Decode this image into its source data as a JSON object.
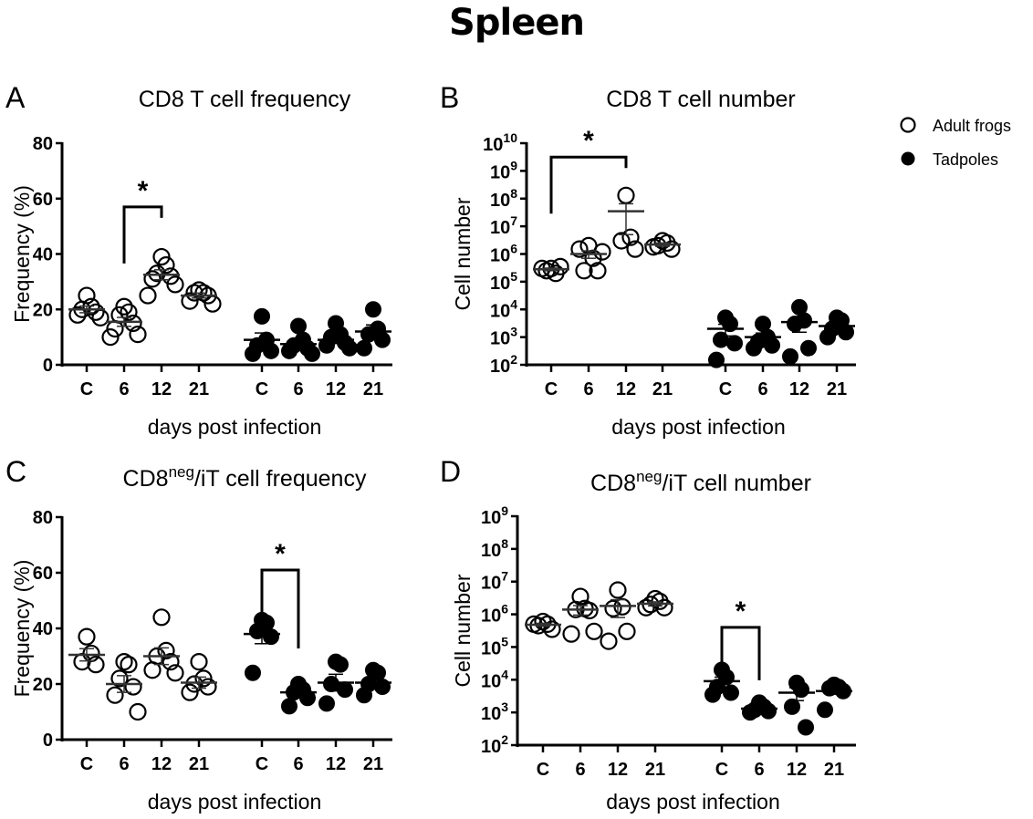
{
  "figure_title": "Spleen",
  "legend": {
    "position": "top-right",
    "items": [
      {
        "label": "Adult frogs",
        "marker": "open-circle"
      },
      {
        "label": "Tadpoles",
        "marker": "filled-circle"
      }
    ]
  },
  "chart_data": [
    {
      "panel": "A",
      "type": "scatter",
      "title": "CD8 T cell frequency",
      "title_sup": "",
      "title_rest": "",
      "xlabel": "days post infection",
      "ylabel": "Frequency (%)",
      "yscale": "linear",
      "ylim": [
        0,
        80
      ],
      "yticks": [
        0,
        20,
        40,
        60,
        80
      ],
      "ytick_labels": [
        "0",
        "20",
        "40",
        "60",
        "80"
      ],
      "categories": [
        "C",
        "6",
        "12",
        "21",
        "C",
        "6",
        "12",
        "21"
      ],
      "series": [
        {
          "name": "Adult frogs",
          "groups": [
            {
              "cat": "C",
              "points": [
                25,
                21,
                20,
                19,
                18,
                17
              ],
              "mean": 20,
              "sem": 1.2
            },
            {
              "cat": "6",
              "points": [
                21,
                19,
                18,
                15,
                13,
                11,
                10
              ],
              "mean": 15.5,
              "sem": 1.6
            },
            {
              "cat": "12",
              "points": [
                39,
                36,
                33,
                32,
                31,
                29,
                25
              ],
              "mean": 32.5,
              "sem": 1.8
            },
            {
              "cat": "21",
              "points": [
                27,
                26,
                26,
                25,
                23,
                22
              ],
              "mean": 25,
              "sem": 0.9
            }
          ]
        },
        {
          "name": "Tadpoles",
          "groups": [
            {
              "cat": "C",
              "points": [
                17.5,
                9,
                7,
                5,
                4
              ],
              "mean": 9,
              "sem": 2.5
            },
            {
              "cat": "6",
              "points": [
                14,
                9,
                7,
                6,
                5,
                4
              ],
              "mean": 7.5,
              "sem": 1.4
            },
            {
              "cat": "12",
              "points": [
                15,
                11,
                10,
                8,
                7,
                6
              ],
              "mean": 9,
              "sem": 1.3
            },
            {
              "cat": "21",
              "points": [
                20,
                13,
                11,
                9,
                6
              ],
              "mean": 12,
              "sem": 2.4
            }
          ]
        }
      ],
      "significance": [
        {
          "from": 1,
          "to": 2,
          "label": "*",
          "y": 57
        }
      ]
    },
    {
      "panel": "B",
      "type": "scatter",
      "title": "CD8 T cell number",
      "title_sup": "",
      "title_rest": "",
      "xlabel": "days post infection",
      "ylabel": "Cell number",
      "yscale": "log",
      "ylim": [
        100,
        10000000000
      ],
      "yticks_exponents": [
        2,
        3,
        4,
        5,
        6,
        7,
        8,
        9,
        10
      ],
      "categories": [
        "C",
        "6",
        "12",
        "21",
        "C",
        "6",
        "12",
        "21"
      ],
      "series": [
        {
          "name": "Adult frogs",
          "groups": [
            {
              "cat": "C",
              "points": [
                300000,
                200000,
                250000,
                350000,
                300000
              ],
              "mean": 280000,
              "sem": 30000
            },
            {
              "cat": "6",
              "points": [
                2000000,
                700000,
                250000,
                250000,
                1500000,
                1200000
              ],
              "mean": 1000000,
              "sem": 300000
            },
            {
              "cat": "12",
              "points": [
                130000000,
                4000000,
                3000000,
                1500000
              ],
              "mean": 35000000,
              "sem": 30000000
            },
            {
              "cat": "21",
              "points": [
                3000000,
                2500000,
                2000000,
                1500000,
                1800000
              ],
              "mean": 2200000,
              "sem": 300000
            }
          ]
        },
        {
          "name": "Tadpoles",
          "groups": [
            {
              "cat": "C",
              "points": [
                5000,
                3000,
                800,
                600,
                150
              ],
              "mean": 2000,
              "sem": 900
            },
            {
              "cat": "6",
              "points": [
                3000,
                1000,
                700,
                500,
                400
              ],
              "mean": 1000,
              "sem": 400
            },
            {
              "cat": "12",
              "points": [
                12000,
                4000,
                3000,
                400,
                200
              ],
              "mean": 3500,
              "sem": 2000
            },
            {
              "cat": "21",
              "points": [
                5000,
                4000,
                2000,
                1500,
                1000
              ],
              "mean": 2500,
              "sem": 700
            }
          ]
        }
      ],
      "significance": [
        {
          "from": 0,
          "to": 2,
          "label": "*",
          "y_exp": 9.5
        }
      ]
    },
    {
      "panel": "C",
      "type": "scatter",
      "title": "CD8",
      "title_sup": "neg",
      "title_rest": "/iT cell frequency",
      "xlabel": "days post infection",
      "ylabel": "Frequency (%)",
      "yscale": "linear",
      "ylim": [
        0,
        80
      ],
      "yticks": [
        0,
        20,
        40,
        60,
        80
      ],
      "ytick_labels": [
        "0",
        "20",
        "40",
        "60",
        "80"
      ],
      "categories": [
        "C",
        "6",
        "12",
        "21",
        "C",
        "6",
        "12",
        "21"
      ],
      "series": [
        {
          "name": "Adult frogs",
          "groups": [
            {
              "cat": "C",
              "points": [
                37,
                31,
                28,
                27
              ],
              "mean": 30.5,
              "sem": 2.2
            },
            {
              "cat": "6",
              "points": [
                28,
                27,
                22,
                19,
                16,
                10
              ],
              "mean": 20,
              "sem": 3.0
            },
            {
              "cat": "12",
              "points": [
                44,
                32,
                30,
                28,
                25,
                24
              ],
              "mean": 30,
              "sem": 3.0
            },
            {
              "cat": "21",
              "points": [
                28,
                22,
                20,
                19,
                17
              ],
              "mean": 20.5,
              "sem": 2.0
            }
          ]
        },
        {
          "name": "Tadpoles",
          "groups": [
            {
              "cat": "C",
              "points": [
                43,
                42,
                39,
                37,
                24
              ],
              "mean": 38,
              "sem": 3.5
            },
            {
              "cat": "6",
              "points": [
                20,
                18,
                17,
                15,
                12
              ],
              "mean": 17,
              "sem": 1.4
            },
            {
              "cat": "12",
              "points": [
                28,
                27,
                20,
                18,
                13
              ],
              "mean": 20.5,
              "sem": 3.0
            },
            {
              "cat": "21",
              "points": [
                25,
                24,
                20,
                19,
                16
              ],
              "mean": 20.5,
              "sem": 1.7
            }
          ]
        }
      ],
      "significance": [
        {
          "from": 4,
          "to": 5,
          "label": "*",
          "y": 61
        }
      ]
    },
    {
      "panel": "D",
      "type": "scatter",
      "title": "CD8",
      "title_sup": "neg",
      "title_rest": "/iT cell number",
      "xlabel": "days post infection",
      "ylabel": "Cell number",
      "yscale": "log",
      "ylim": [
        100,
        1000000000
      ],
      "yticks_exponents": [
        2,
        3,
        4,
        5,
        6,
        7,
        8,
        9
      ],
      "categories": [
        "C",
        "6",
        "12",
        "21",
        "C",
        "6",
        "12",
        "21"
      ],
      "series": [
        {
          "name": "Adult frogs",
          "groups": [
            {
              "cat": "C",
              "points": [
                600000,
                500000,
                450000,
                350000,
                500000
              ],
              "mean": 480000,
              "sem": 50000
            },
            {
              "cat": "6",
              "points": [
                3500000,
                1500000,
                1400000,
                1300000,
                250000,
                300000
              ],
              "mean": 1400000,
              "sem": 450000
            },
            {
              "cat": "12",
              "points": [
                5500000,
                1700000,
                1500000,
                300000,
                150000
              ],
              "mean": 1800000,
              "sem": 1000000
            },
            {
              "cat": "21",
              "points": [
                3000000,
                2500000,
                2000000,
                1600000,
                1600000
              ],
              "mean": 2100000,
              "sem": 300000
            }
          ]
        },
        {
          "name": "Tadpoles",
          "groups": [
            {
              "cat": "C",
              "points": [
                20000,
                12000,
                6000,
                4000,
                3500
              ],
              "mean": 9000,
              "sem": 3000
            },
            {
              "cat": "6",
              "points": [
                2000,
                1500,
                1200,
                1100,
                1000
              ],
              "mean": 1300,
              "sem": 200
            },
            {
              "cat": "12",
              "points": [
                8000,
                5000,
                1500,
                350
              ],
              "mean": 4000,
              "sem": 1700
            },
            {
              "cat": "21",
              "points": [
                7000,
                6000,
                5500,
                4500,
                1200
              ],
              "mean": 4500,
              "sem": 900
            }
          ]
        }
      ],
      "significance": [
        {
          "from": 4,
          "to": 5,
          "label": "*",
          "y_exp": 5.6
        }
      ]
    }
  ]
}
